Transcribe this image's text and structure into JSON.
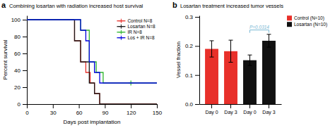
{
  "chart_data": [
    {
      "type": "line",
      "panel_label": "a",
      "title": "Combining losartan with radiation increased host survival",
      "xlabel": "Days post implantation",
      "ylabel": "Percent survival",
      "xlim": [
        0,
        150
      ],
      "ylim": [
        0,
        105
      ],
      "xticks": [
        0,
        30,
        60,
        90,
        120,
        150
      ],
      "yticks": [
        0,
        20,
        40,
        60,
        80,
        100
      ],
      "grid": false,
      "legend": "upper right",
      "series": [
        {
          "name": "Control N=8",
          "color": "#e8302a",
          "x": [
            0,
            55,
            55,
            62,
            62,
            68,
            68,
            73,
            73,
            78,
            78,
            84,
            84,
            150
          ],
          "values": [
            100,
            100,
            75,
            75,
            50,
            50,
            37.5,
            37.5,
            25,
            25,
            12.5,
            12.5,
            0,
            0
          ],
          "censored_x": [],
          "censored_y": []
        },
        {
          "name": "Losartan N=8",
          "color": "#1a1a1a",
          "x": [
            0,
            55,
            55,
            62,
            62,
            72,
            72,
            78,
            78,
            84,
            84,
            150
          ],
          "values": [
            100,
            100,
            75,
            75,
            50,
            50,
            25,
            25,
            12.5,
            12.5,
            0,
            0
          ],
          "censored_x": [],
          "censored_y": []
        },
        {
          "name": "IR N=8",
          "color": "#2db52d",
          "x": [
            0,
            62,
            62,
            72,
            72,
            80,
            80,
            88,
            88,
            120,
            120,
            150
          ],
          "values": [
            100,
            100,
            87.5,
            87.5,
            50,
            50,
            37.5,
            37.5,
            25,
            25,
            25,
            25
          ],
          "censored_x": [
            120
          ],
          "censored_y": [
            25
          ]
        },
        {
          "name": "Los + IR N=8",
          "color": "#0000dd",
          "x": [
            0,
            62,
            62,
            68,
            68,
            72,
            72,
            78,
            78,
            84,
            84,
            150
          ],
          "values": [
            100,
            100,
            87.5,
            87.5,
            75,
            75,
            50,
            50,
            37.5,
            37.5,
            25,
            25
          ],
          "censored_x": [],
          "censored_y": []
        }
      ]
    },
    {
      "type": "bar",
      "panel_label": "b",
      "title": "Losartan treatment increased tumor vessels",
      "ylabel": "Vessel fraction",
      "categories": [
        "Day 0",
        "Day 3",
        "Day 0",
        "Day 3"
      ],
      "ylim": [
        0,
        0.305
      ],
      "yticks": [
        {
          "value": 0,
          "label": "0.0"
        },
        0.1,
        0.2,
        0.3
      ],
      "grid": false,
      "legend": "upper right",
      "series": [
        {
          "name": "Control (N=10)",
          "color": "#e8302a",
          "values": [
            0.19,
            0.182,
            null,
            null
          ],
          "errors": [
            0.028,
            0.038,
            null,
            null
          ]
        },
        {
          "name": "Losartan (N=10)",
          "color": "#111111",
          "values": [
            null,
            null,
            0.151,
            0.218
          ],
          "errors": [
            null,
            null,
            0.018,
            0.022
          ]
        }
      ],
      "annotations": [
        {
          "text": "P=0.0314",
          "y": 0.255,
          "from": 2,
          "to": 3,
          "color": "#7ab8d4"
        }
      ]
    }
  ]
}
